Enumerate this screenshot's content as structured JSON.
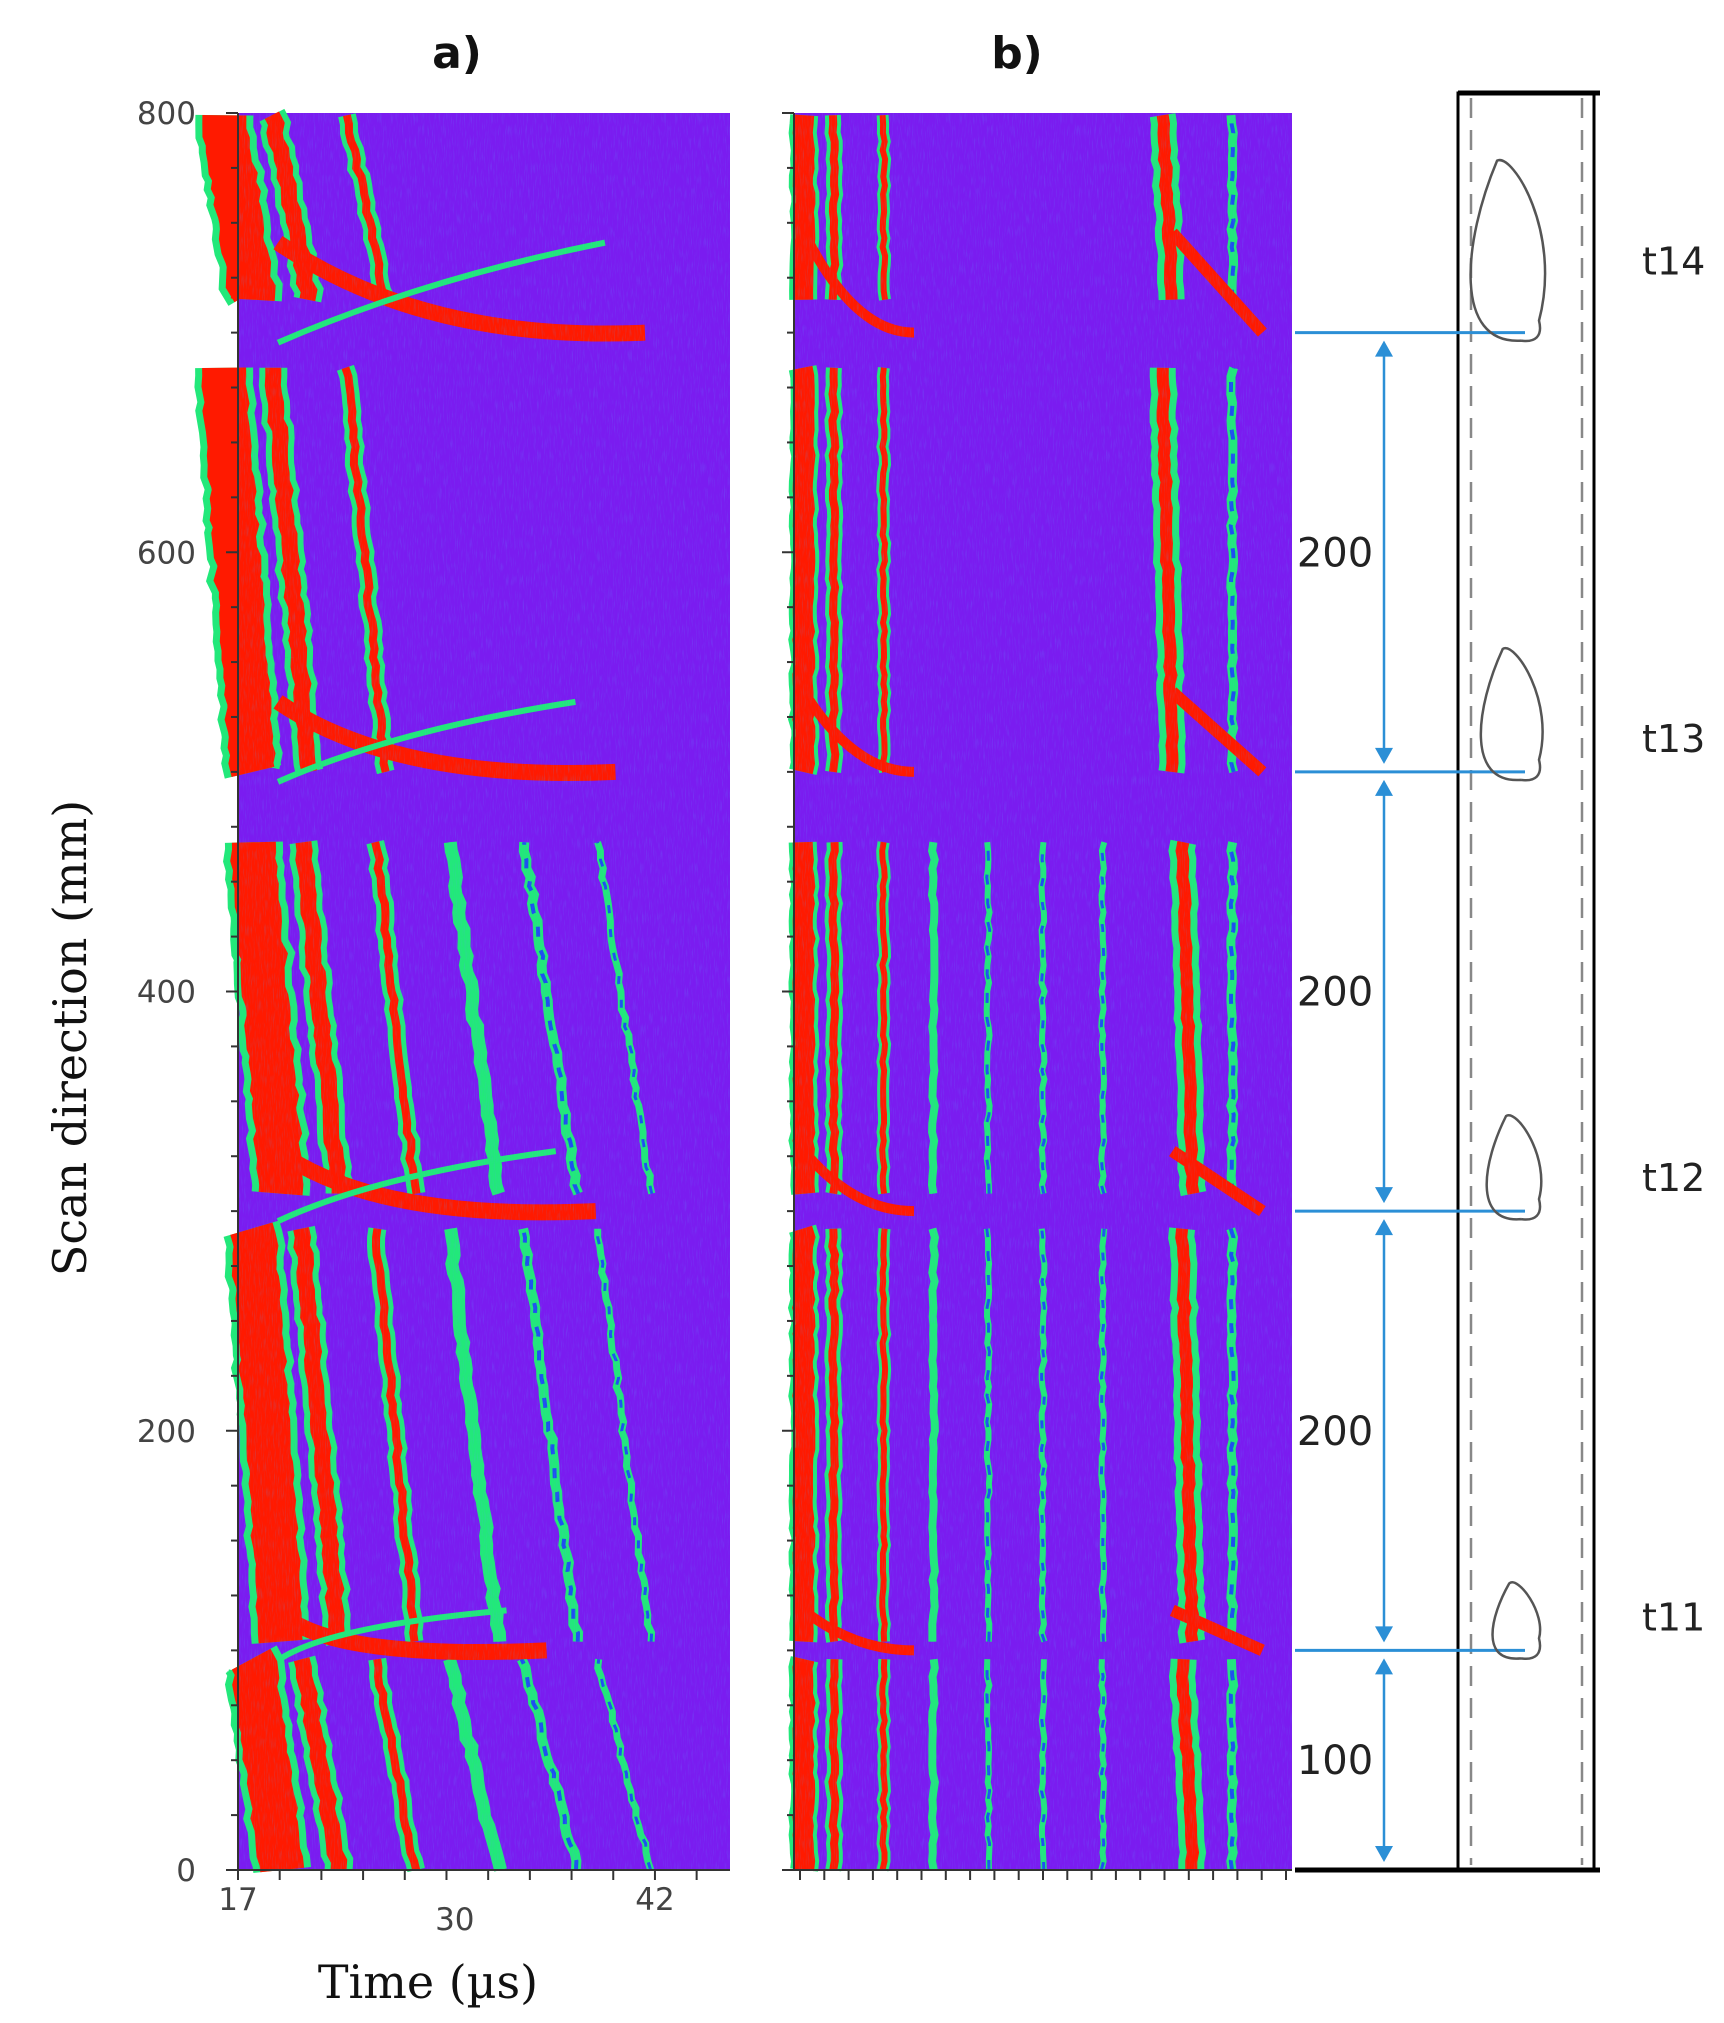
{
  "panels": [
    {
      "label": "a)"
    },
    {
      "label": "b)"
    }
  ],
  "chart_data": {
    "type": "heatmap",
    "description_type": "ultrasonic B-scan",
    "xlabel": "Time (µs)",
    "ylabel": "Scan direction (mm)",
    "xlim": [
      17,
      46.5
    ],
    "ylim": [
      0,
      800
    ],
    "x_ticks": [
      17,
      30,
      42
    ],
    "y_ticks": [
      0,
      200,
      400,
      600,
      800
    ],
    "colors": {
      "background": "#7a1cf0",
      "strong": "#ff1a00",
      "medium": "#22e87a",
      "weak": "#1e50f0"
    },
    "specimen": {
      "length_mm": 800,
      "spacings": [
        {
          "label": "100",
          "from": 0,
          "to": 100
        },
        {
          "label": "200",
          "from": 100,
          "to": 300
        },
        {
          "label": "200",
          "from": 300,
          "to": 500
        },
        {
          "label": "200",
          "from": 500,
          "to": 700
        }
      ],
      "defects": [
        {
          "name": "t11",
          "position": 100,
          "size": 0.25
        },
        {
          "name": "t12",
          "position": 300,
          "size": 0.45
        },
        {
          "name": "t13",
          "position": 500,
          "size": 0.65
        },
        {
          "name": "t14",
          "position": 700,
          "size": 1.0
        }
      ]
    }
  }
}
